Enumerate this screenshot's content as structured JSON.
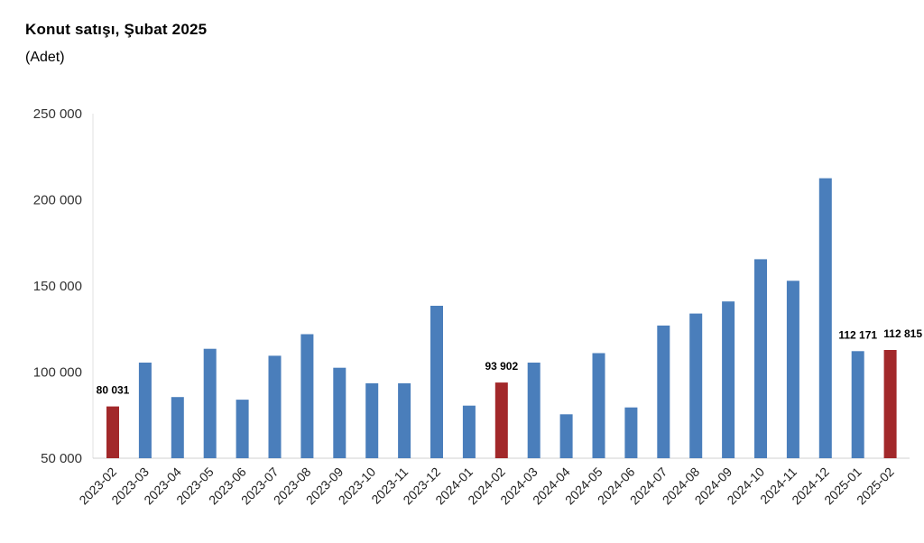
{
  "chart_data": {
    "type": "bar",
    "title": "Konut satışı, Şubat 2025",
    "subtitle": "(Adet)",
    "xlabel": "",
    "ylabel": "",
    "ylim": [
      50000,
      250000
    ],
    "yticks": [
      50000,
      100000,
      150000,
      200000,
      250000
    ],
    "ytick_labels": [
      "50 000",
      "100 000",
      "150 000",
      "200 000",
      "250 000"
    ],
    "grid": false,
    "categories": [
      "2023-02",
      "2023-03",
      "2023-04",
      "2023-05",
      "2023-06",
      "2023-07",
      "2023-08",
      "2023-09",
      "2023-10",
      "2023-11",
      "2023-12",
      "2024-01",
      "2024-02",
      "2024-03",
      "2024-04",
      "2024-05",
      "2024-06",
      "2024-07",
      "2024-08",
      "2024-09",
      "2024-10",
      "2024-11",
      "2024-12",
      "2025-01",
      "2025-02"
    ],
    "values": [
      80031,
      105500,
      85500,
      113500,
      84000,
      109500,
      122000,
      102500,
      93500,
      93500,
      138500,
      80500,
      93902,
      105500,
      75500,
      111000,
      79500,
      127000,
      134000,
      141000,
      165500,
      153000,
      212500,
      112171,
      112815
    ],
    "highlight": [
      0,
      12,
      24
    ],
    "data_labels": [
      {
        "index": 0,
        "text": "80 031"
      },
      {
        "index": 12,
        "text": "93 902"
      },
      {
        "index": 23,
        "text": "112 171"
      },
      {
        "index": 24,
        "text": "112 815"
      }
    ],
    "colors": {
      "default": "#4A7EBB",
      "highlight": "#A2282A"
    }
  }
}
